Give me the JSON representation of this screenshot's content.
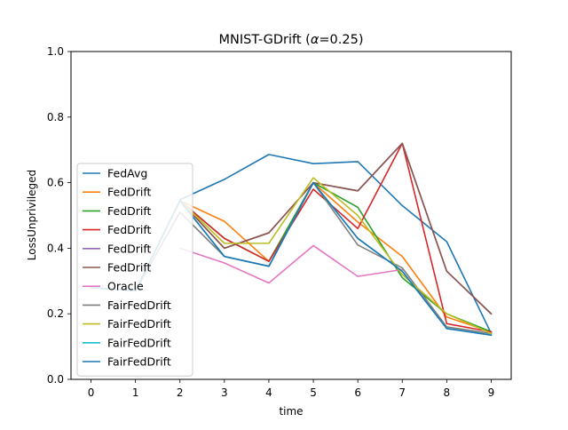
{
  "chart_data": {
    "type": "line",
    "title_prefix": "MNIST-GDrift (",
    "title_symbol": "α",
    "title_suffix": "=0.25)",
    "xlabel": "time",
    "ylabel": "LossUnprivileged",
    "x": [
      0,
      1,
      2,
      3,
      4,
      5,
      6,
      7,
      8,
      9
    ],
    "xlim": [
      -0.45,
      9.45
    ],
    "ylim": [
      0.0,
      1.0
    ],
    "xticks": [
      "0",
      "1",
      "2",
      "3",
      "4",
      "5",
      "6",
      "7",
      "8",
      "9"
    ],
    "yticks": [
      "0.0",
      "0.2",
      "0.4",
      "0.6",
      "0.8",
      "1.0"
    ],
    "grid": false,
    "legend_position": "left",
    "series": [
      {
        "name": "FedAvg",
        "color": "#1f77b4",
        "values": [
          null,
          null,
          0.548,
          0.61,
          0.686,
          0.658,
          0.664,
          0.53,
          0.42,
          0.14
        ]
      },
      {
        "name": "FedDrift",
        "color": "#ff7f0e",
        "values": [
          null,
          null,
          0.545,
          0.482,
          0.36,
          0.6,
          0.48,
          0.375,
          0.19,
          0.145
        ]
      },
      {
        "name": "FedDrift",
        "color": "#2ca02c",
        "values": [
          null,
          null,
          0.545,
          0.43,
          0.36,
          0.6,
          0.525,
          0.31,
          0.2,
          0.145
        ]
      },
      {
        "name": "FedDrift",
        "color": "#d62728",
        "values": [
          null,
          null,
          0.545,
          0.43,
          0.36,
          0.58,
          0.46,
          0.72,
          0.17,
          0.145
        ]
      },
      {
        "name": "FedDrift",
        "color": "#9467bd",
        "values": [
          null,
          null,
          0.545,
          0.4,
          0.447,
          0.6,
          0.575,
          0.72,
          0.33,
          0.2
        ]
      },
      {
        "name": "FedDrift",
        "color": "#8c564b",
        "values": [
          null,
          null,
          0.545,
          0.4,
          0.447,
          0.6,
          0.575,
          0.72,
          0.33,
          0.2
        ]
      },
      {
        "name": "Oracle",
        "color": "#e377c2",
        "values": [
          null,
          null,
          0.4,
          0.355,
          0.294,
          0.408,
          0.314,
          0.335,
          null,
          null
        ]
      },
      {
        "name": "FairFedDrift",
        "color": "#7f7f7f",
        "values": [
          0.28,
          0.27,
          0.51,
          0.375,
          0.345,
          0.6,
          0.41,
          0.34,
          0.16,
          0.14
        ]
      },
      {
        "name": "FairFedDrift",
        "color": "#bcbd22",
        "values": [
          0.28,
          0.27,
          0.545,
          0.415,
          0.415,
          0.615,
          0.5,
          0.32,
          0.2,
          0.14
        ]
      },
      {
        "name": "FairFedDrift",
        "color": "#17becf",
        "values": [
          0.28,
          0.27,
          0.545,
          0.375,
          0.345,
          0.6,
          0.43,
          0.33,
          0.155,
          0.135
        ]
      },
      {
        "name": "FairFedDrift",
        "color": "#1f77b4",
        "values": [
          0.28,
          0.27,
          0.545,
          0.375,
          0.345,
          0.6,
          0.43,
          0.33,
          0.155,
          0.135
        ]
      }
    ]
  }
}
